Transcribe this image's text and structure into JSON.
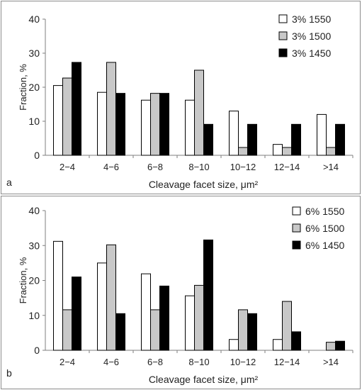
{
  "chart_data": [
    {
      "type": "bar",
      "panel_label": "a",
      "categories": [
        "2−4",
        "4−6",
        "6−8",
        "8−10",
        "10−12",
        "12−14",
        ">14"
      ],
      "series": [
        {
          "name": "3% 1550",
          "color": "#ffffff",
          "values": [
            20.5,
            18.5,
            16.2,
            16.2,
            13.0,
            3.2,
            12.0
          ]
        },
        {
          "name": "3% 1500",
          "color": "#c8c8c8",
          "values": [
            22.7,
            27.3,
            18.2,
            25.0,
            2.3,
            2.3,
            2.3
          ]
        },
        {
          "name": "3% 1450",
          "color": "#000000",
          "values": [
            27.3,
            18.2,
            18.2,
            9.1,
            9.1,
            9.1,
            9.1
          ]
        }
      ],
      "xlabel": "Cleavage facet size, μm²",
      "ylabel": "Fraction, %",
      "ylim": [
        0,
        40
      ],
      "yticks": [
        "0",
        "10",
        "20",
        "30",
        "40"
      ],
      "grid": false,
      "legend_position": "top-right"
    },
    {
      "type": "bar",
      "panel_label": "b",
      "categories": [
        "2−4",
        "4−6",
        "6−8",
        "8−10",
        "10−12",
        "12−14",
        ">14"
      ],
      "series": [
        {
          "name": "6% 1550",
          "color": "#ffffff",
          "values": [
            31.2,
            25.0,
            21.9,
            15.6,
            3.1,
            3.1,
            0
          ]
        },
        {
          "name": "6% 1500",
          "color": "#c8c8c8",
          "values": [
            11.6,
            30.2,
            11.6,
            18.6,
            11.6,
            14.0,
            2.3
          ]
        },
        {
          "name": "6% 1450",
          "color": "#000000",
          "values": [
            21.0,
            10.5,
            18.4,
            31.6,
            10.5,
            5.3,
            2.6
          ]
        }
      ],
      "xlabel": "Cleavage facet size, μm²",
      "ylabel": "Fraction, %",
      "ylim": [
        0,
        40
      ],
      "yticks": [
        "0",
        "10",
        "20",
        "30",
        "40"
      ],
      "grid": false,
      "legend_position": "top-right"
    }
  ]
}
